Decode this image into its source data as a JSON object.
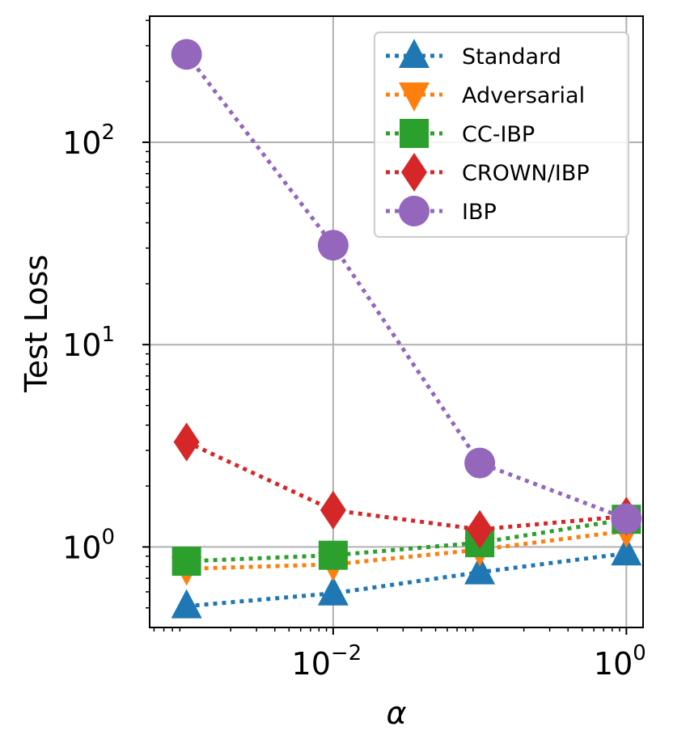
{
  "chart_data": {
    "type": "line",
    "xscale": "log",
    "yscale": "log",
    "xlabel": "α",
    "ylabel": "Test Loss",
    "xlim": [
      0.00056,
      1.3
    ],
    "ylim": [
      0.4,
      420
    ],
    "x": [
      0.001,
      0.01,
      0.1,
      1
    ],
    "x_ticks": [
      {
        "value": 0.01,
        "base": "10",
        "exp": "−2"
      },
      {
        "value": 1,
        "base": "10",
        "exp": "0"
      }
    ],
    "y_ticks": [
      {
        "value": 1,
        "base": "10",
        "exp": "0"
      },
      {
        "value": 10,
        "base": "10",
        "exp": "1"
      },
      {
        "value": 100,
        "base": "10",
        "exp": "2"
      }
    ],
    "grid": true,
    "legend_position": "top-right",
    "series": [
      {
        "name": "Standard",
        "values": [
          0.51,
          0.59,
          0.75,
          0.93
        ],
        "color": "#1f77b4",
        "marker": "triangle-up"
      },
      {
        "name": "Adversarial",
        "values": [
          0.78,
          0.82,
          0.97,
          1.2
        ],
        "color": "#ff7f0e",
        "marker": "triangle-down"
      },
      {
        "name": "CC-IBP",
        "values": [
          0.85,
          0.91,
          1.05,
          1.37
        ],
        "color": "#2ca02c",
        "marker": "square"
      },
      {
        "name": "CROWN/IBP",
        "values": [
          3.3,
          1.52,
          1.22,
          1.42
        ],
        "color": "#d62728",
        "marker": "diamond"
      },
      {
        "name": "IBP",
        "values": [
          272,
          31,
          2.6,
          1.38
        ],
        "color": "#9467bd",
        "marker": "circle"
      }
    ]
  }
}
